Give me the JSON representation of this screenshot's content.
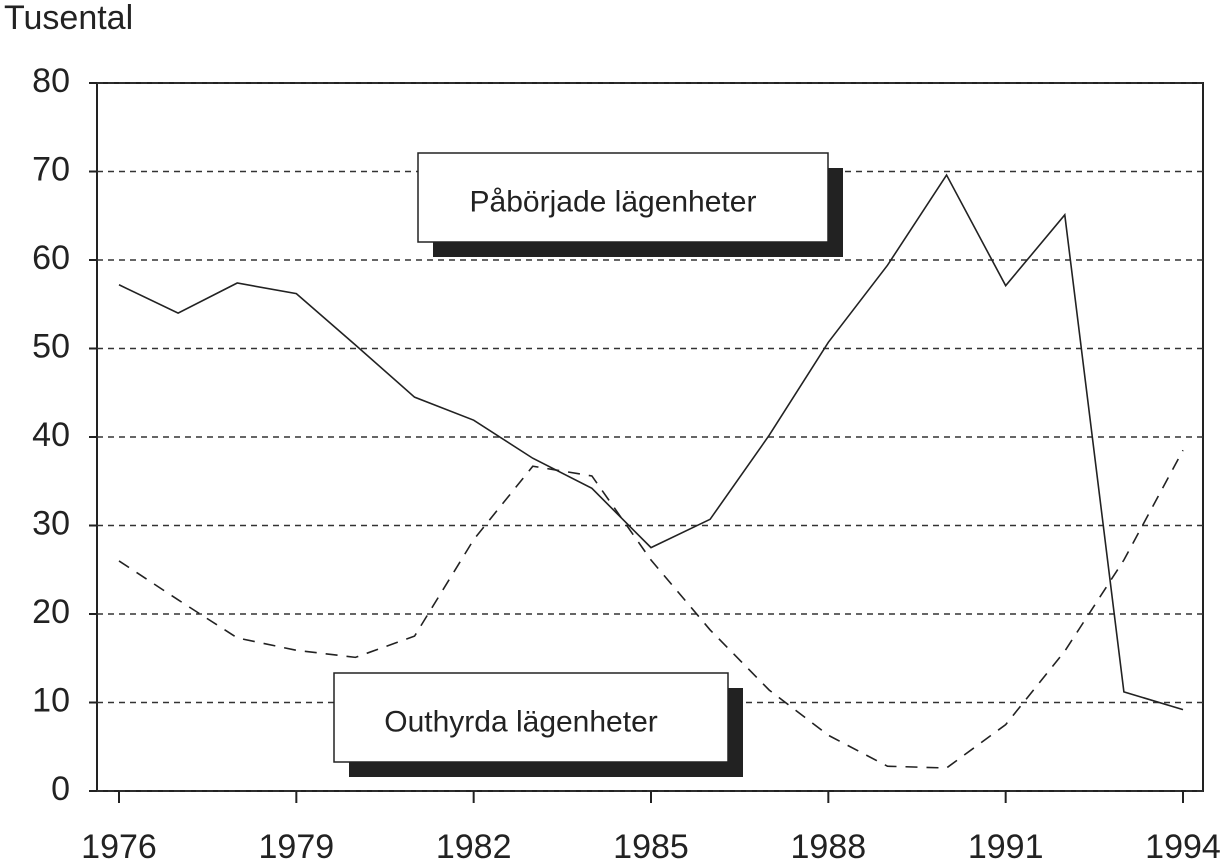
{
  "chart_data": {
    "type": "line",
    "y_label": "Tusental",
    "x": [
      1976,
      1977,
      1978,
      1979,
      1980,
      1981,
      1982,
      1983,
      1984,
      1985,
      1986,
      1987,
      1988,
      1989,
      1990,
      1991,
      1992,
      1993,
      1994
    ],
    "series": [
      {
        "name": "Påbörjade lägenheter",
        "color": "#222222",
        "dash": "solid",
        "values": [
          57.2,
          54.0,
          57.4,
          56.2,
          50.4,
          44.5,
          41.9,
          37.6,
          34.2,
          27.5,
          30.7,
          40.2,
          50.7,
          59.4,
          69.6,
          57.1,
          65.1,
          11.2,
          9.2
        ]
      },
      {
        "name": "Outhyrda lägenheter",
        "color": "#222222",
        "dash": "dashed",
        "values": [
          26.0,
          21.6,
          17.3,
          15.9,
          15.1,
          17.5,
          28.4,
          36.7,
          35.6,
          26.1,
          18.2,
          11.4,
          6.3,
          2.8,
          2.6,
          7.5,
          15.8,
          26.1,
          38.5
        ]
      }
    ],
    "xlim": [
      1976,
      1994
    ],
    "xticks": [
      1976,
      1979,
      1982,
      1985,
      1988,
      1991,
      1994
    ],
    "ylim": [
      0,
      80
    ],
    "yticks": [
      0,
      10,
      20,
      30,
      40,
      50,
      60,
      70,
      80
    ],
    "grid": true
  }
}
